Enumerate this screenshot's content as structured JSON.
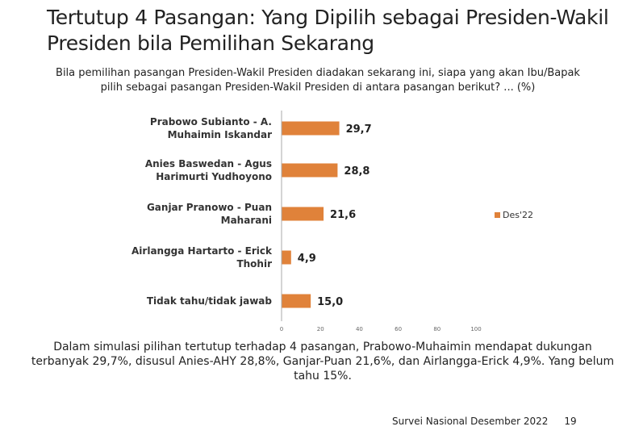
{
  "title": "Tertutup 4 Pasangan: Yang Dipilih sebagai Presiden-Wakil Presiden bila Pemilihan Sekarang",
  "question": "Bila pemilihan pasangan Presiden-Wakil Presiden diadakan sekarang ini, siapa yang akan Ibu/Bapak pilih sebagai pasangan Presiden-Wakil Presiden di antara pasangan berikut? ... (%)",
  "summary": "Dalam simulasi pilihan tertutup terhadap 4 pasangan, Prabowo-Muhaimin mendapat dukungan terbanyak 29,7%, disusul Anies-AHY 28,8%, Ganjar-Puan 21,6%, dan Airlangga-Erick 4,9%. Yang belum tahu 15%.",
  "footer": {
    "source": "Survei Nasional Desember 2022",
    "page": "19"
  },
  "colors": {
    "bar": "#e0823a"
  },
  "chart_data": {
    "type": "bar",
    "orientation": "horizontal",
    "categories": [
      [
        "Prabowo Subianto - A.",
        "Muhaimin Iskandar"
      ],
      [
        "Anies Baswedan - Agus",
        "Harimurti Yudhoyono"
      ],
      [
        "Ganjar Pranowo - Puan",
        "Maharani"
      ],
      [
        "Airlangga Hartarto - Erick",
        "Thohir"
      ],
      [
        "Tidak tahu/tidak jawab"
      ]
    ],
    "series": [
      {
        "name": "Des'22",
        "values": [
          29.7,
          28.8,
          21.6,
          4.9,
          15.0
        ],
        "labels": [
          "29,7",
          "28,8",
          "21,6",
          "4,9",
          "15,0"
        ]
      }
    ],
    "xlim": [
      0,
      100
    ],
    "xticks": [
      "0",
      "20",
      "40",
      "60",
      "80",
      "100"
    ],
    "legend": "right",
    "grid": false
  }
}
